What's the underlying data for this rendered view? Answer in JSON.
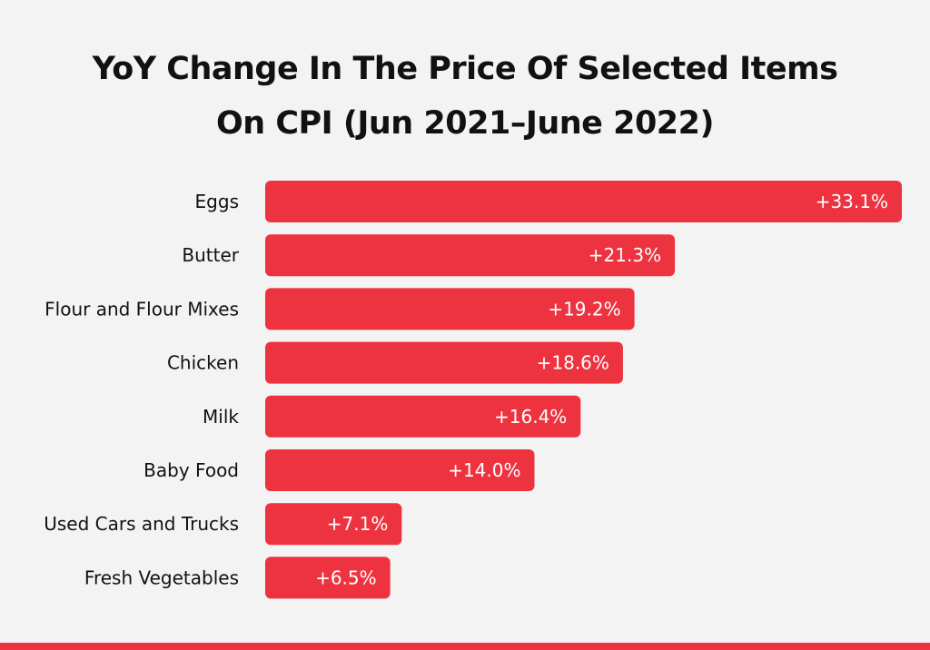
{
  "colors": {
    "background": "#f3f3f3",
    "bar": "#ee3340",
    "bottom_bar": "#ee3340",
    "label_text": "#111111",
    "value_text": "#ffffff"
  },
  "chart_data": {
    "type": "bar",
    "orientation": "horizontal",
    "title": "YoY Change In The Price Of Selected Items On CPI (Jun 2021–June 2022)",
    "title_lines": [
      "YoY Change In The Price Of Selected Items",
      "On CPI (Jun 2021–June 2022)"
    ],
    "xlabel": "",
    "ylabel": "",
    "xlim": [
      0,
      33.1
    ],
    "unit": "%",
    "categories": [
      "Eggs",
      "Butter",
      "Flour and Flour Mixes",
      "Chicken",
      "Milk",
      "Baby Food",
      "Used Cars and Trucks",
      "Fresh Vegetables"
    ],
    "values": [
      33.1,
      21.3,
      19.2,
      18.6,
      16.4,
      14.0,
      7.1,
      6.5
    ],
    "value_labels": [
      "+33.1%",
      "+21.3%",
      "+19.2%",
      "+18.6%",
      "+16.4%",
      "+14.0%",
      "+7.1%",
      "+6.5%"
    ]
  }
}
